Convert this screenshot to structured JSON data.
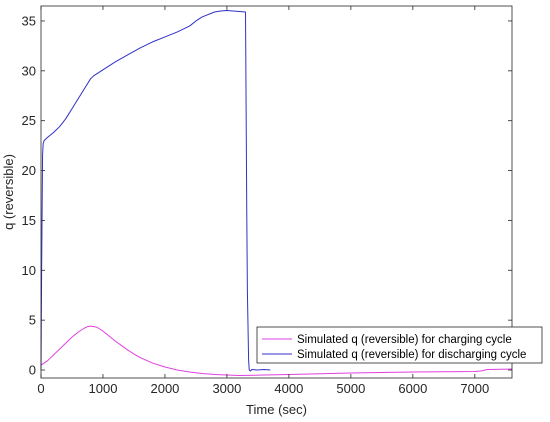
{
  "chart_data": {
    "type": "line",
    "xlabel": "Time (sec)",
    "ylabel": "q (reversible)",
    "xlim": [
      0,
      7600
    ],
    "ylim": [
      -0.8,
      36.5
    ],
    "xticks": [
      0,
      1000,
      2000,
      3000,
      4000,
      5000,
      6000,
      7000
    ],
    "yticks": [
      0,
      5,
      10,
      15,
      20,
      25,
      30,
      35
    ],
    "grid": false,
    "legend_position": "lower-right",
    "series": [
      {
        "name": "Simulated q (reversible) for charging cycle",
        "color": "#e040e0",
        "x": [
          0,
          100,
          200,
          300,
          400,
          500,
          600,
          700,
          750,
          800,
          850,
          900,
          1000,
          1100,
          1200,
          1300,
          1400,
          1500,
          1600,
          1800,
          2000,
          2200,
          2400,
          2600,
          2800,
          3000,
          3200,
          3600,
          4000,
          5000,
          6000,
          7000,
          7100,
          7200,
          7600
        ],
        "y": [
          0.5,
          0.9,
          1.5,
          2.1,
          2.7,
          3.3,
          3.8,
          4.2,
          4.35,
          4.4,
          4.35,
          4.3,
          3.9,
          3.4,
          2.9,
          2.45,
          2.0,
          1.6,
          1.25,
          0.7,
          0.3,
          0.0,
          -0.2,
          -0.35,
          -0.45,
          -0.5,
          -0.55,
          -0.5,
          -0.45,
          -0.3,
          -0.2,
          -0.15,
          -0.1,
          0.05,
          0.1
        ]
      },
      {
        "name": "Simulated q (reversible) for discharging cycle",
        "color": "#3030c8",
        "x": [
          0,
          10,
          25,
          35,
          50,
          100,
          200,
          300,
          400,
          500,
          600,
          700,
          800,
          850,
          900,
          1000,
          1200,
          1400,
          1600,
          1800,
          2000,
          2200,
          2300,
          2400,
          2500,
          2600,
          2800,
          2900,
          3000,
          3100,
          3200,
          3300,
          3310,
          3320,
          3330,
          3350,
          3360,
          3380,
          3400,
          3500,
          3600,
          3700
        ],
        "y": [
          0.0,
          10.0,
          21.5,
          22.7,
          23.0,
          23.3,
          23.8,
          24.4,
          25.2,
          26.2,
          27.2,
          28.2,
          29.2,
          29.5,
          29.7,
          30.1,
          30.9,
          31.6,
          32.3,
          32.9,
          33.4,
          33.9,
          34.2,
          34.5,
          35.0,
          35.4,
          35.9,
          36.0,
          36.05,
          36.0,
          35.95,
          35.9,
          26.0,
          16.0,
          8.0,
          1.0,
          0.0,
          -0.1,
          0.05,
          0.0,
          0.05,
          0.0
        ]
      }
    ]
  }
}
